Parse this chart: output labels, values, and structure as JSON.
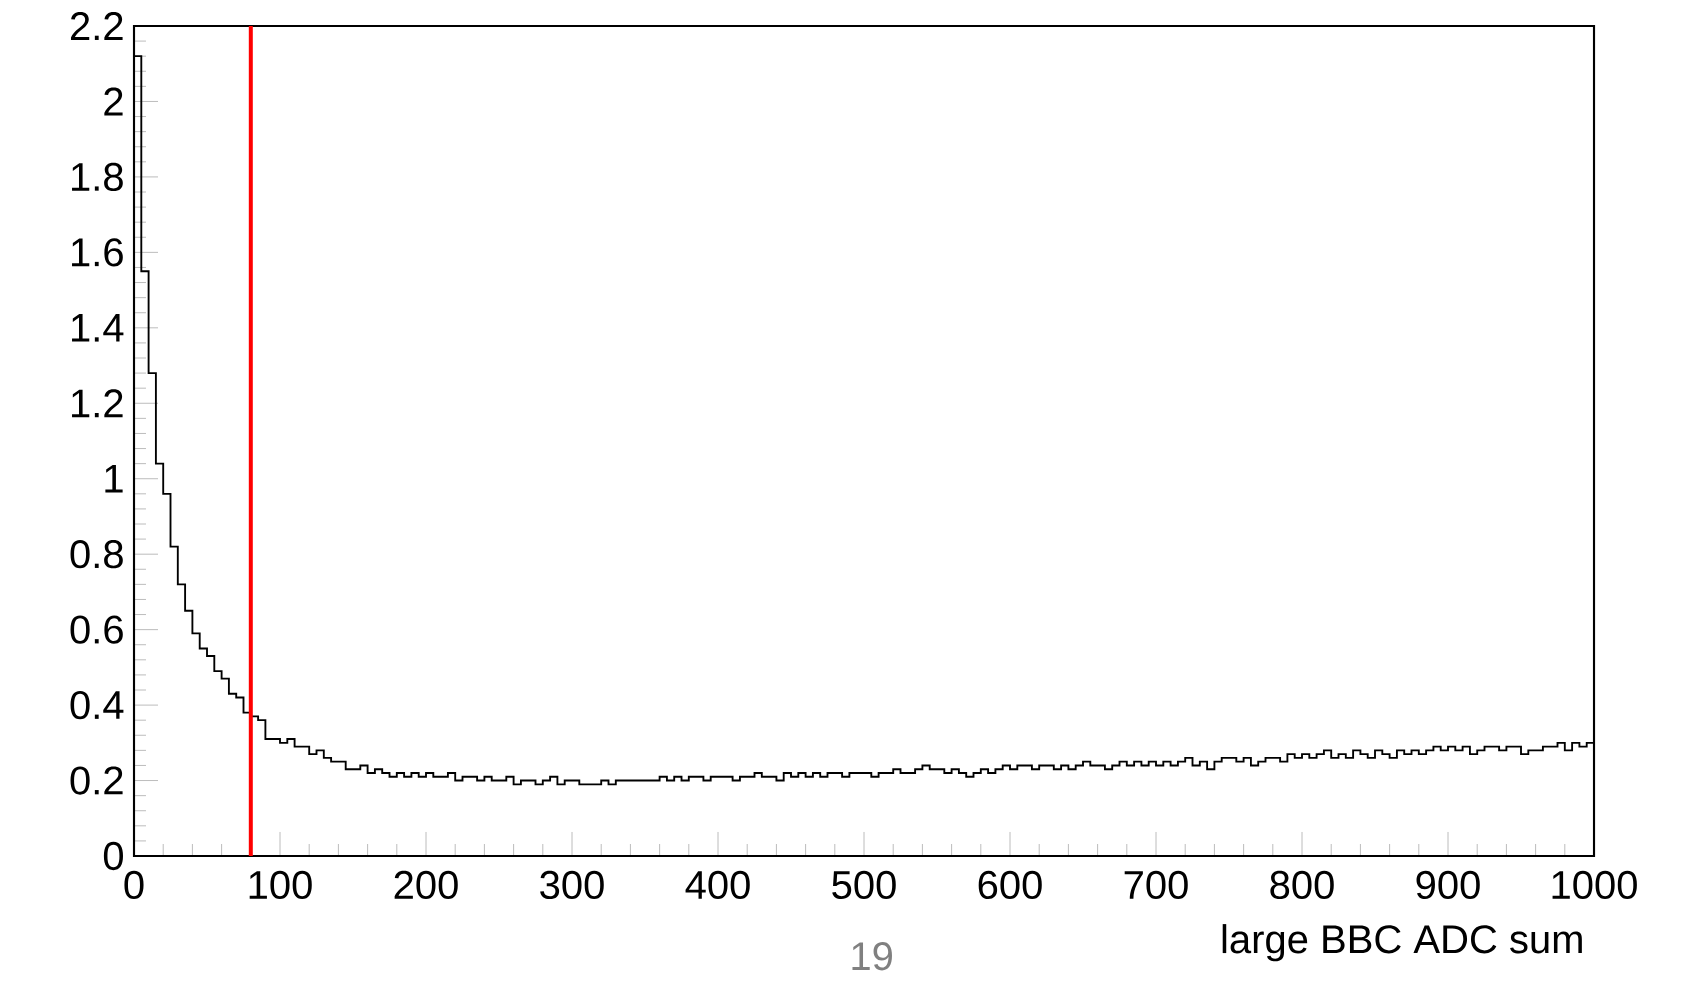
{
  "chart_data": {
    "type": "histogram",
    "xlabel": "large BBC ADC sum",
    "bins": [
      0,
      5,
      10,
      15,
      20,
      25,
      30,
      35,
      40,
      45,
      50,
      55,
      60,
      65,
      70,
      75,
      80,
      85,
      90,
      95,
      100,
      105,
      110,
      115,
      120,
      125,
      130,
      135,
      140,
      145,
      150,
      155,
      160,
      165,
      170,
      175,
      180,
      185,
      190,
      195,
      200,
      205,
      210,
      215,
      220,
      225,
      230,
      235,
      240,
      245,
      250,
      255,
      260,
      265,
      270,
      275,
      280,
      285,
      290,
      295,
      300,
      305,
      310,
      315,
      320,
      325,
      330,
      335,
      340,
      345,
      350,
      355,
      360,
      365,
      370,
      375,
      380,
      385,
      390,
      395,
      400,
      405,
      410,
      415,
      420,
      425,
      430,
      435,
      440,
      445,
      450,
      455,
      460,
      465,
      470,
      475,
      480,
      485,
      490,
      495,
      500,
      505,
      510,
      515,
      520,
      525,
      530,
      535,
      540,
      545,
      550,
      555,
      560,
      565,
      570,
      575,
      580,
      585,
      590,
      595,
      600,
      605,
      610,
      615,
      620,
      625,
      630,
      635,
      640,
      645,
      650,
      655,
      660,
      665,
      670,
      675,
      680,
      685,
      690,
      695,
      700,
      705,
      710,
      715,
      720,
      725,
      730,
      735,
      740,
      745,
      750,
      755,
      760,
      765,
      770,
      775,
      780,
      785,
      790,
      795,
      800,
      805,
      810,
      815,
      820,
      825,
      830,
      835,
      840,
      845,
      850,
      855,
      860,
      865,
      870,
      875,
      880,
      885,
      890,
      895,
      900,
      905,
      910,
      915,
      920,
      925,
      930,
      935,
      940,
      945,
      950,
      955,
      960,
      965,
      970,
      975,
      980,
      985,
      990,
      995,
      1000
    ],
    "values": [
      2.12,
      1.55,
      1.28,
      1.04,
      0.96,
      0.82,
      0.72,
      0.65,
      0.59,
      0.55,
      0.53,
      0.49,
      0.47,
      0.43,
      0.42,
      0.38,
      0.37,
      0.36,
      0.31,
      0.31,
      0.3,
      0.31,
      0.29,
      0.29,
      0.27,
      0.28,
      0.26,
      0.25,
      0.25,
      0.23,
      0.23,
      0.24,
      0.22,
      0.23,
      0.22,
      0.21,
      0.22,
      0.21,
      0.22,
      0.21,
      0.22,
      0.21,
      0.21,
      0.22,
      0.2,
      0.21,
      0.21,
      0.2,
      0.21,
      0.2,
      0.2,
      0.21,
      0.19,
      0.2,
      0.2,
      0.19,
      0.2,
      0.21,
      0.19,
      0.2,
      0.2,
      0.19,
      0.19,
      0.19,
      0.2,
      0.19,
      0.2,
      0.2,
      0.2,
      0.2,
      0.2,
      0.2,
      0.21,
      0.2,
      0.21,
      0.2,
      0.21,
      0.21,
      0.2,
      0.21,
      0.21,
      0.21,
      0.2,
      0.21,
      0.21,
      0.22,
      0.21,
      0.21,
      0.2,
      0.22,
      0.21,
      0.22,
      0.21,
      0.22,
      0.21,
      0.22,
      0.22,
      0.21,
      0.22,
      0.22,
      0.22,
      0.21,
      0.22,
      0.22,
      0.23,
      0.22,
      0.22,
      0.23,
      0.24,
      0.23,
      0.23,
      0.22,
      0.23,
      0.22,
      0.21,
      0.22,
      0.23,
      0.22,
      0.23,
      0.24,
      0.23,
      0.24,
      0.24,
      0.23,
      0.24,
      0.24,
      0.23,
      0.24,
      0.23,
      0.24,
      0.25,
      0.24,
      0.24,
      0.23,
      0.24,
      0.25,
      0.24,
      0.25,
      0.24,
      0.25,
      0.24,
      0.25,
      0.24,
      0.25,
      0.26,
      0.24,
      0.25,
      0.23,
      0.25,
      0.26,
      0.26,
      0.25,
      0.26,
      0.24,
      0.25,
      0.26,
      0.26,
      0.25,
      0.27,
      0.26,
      0.27,
      0.26,
      0.27,
      0.28,
      0.26,
      0.27,
      0.26,
      0.28,
      0.27,
      0.26,
      0.28,
      0.27,
      0.26,
      0.28,
      0.27,
      0.28,
      0.27,
      0.28,
      0.29,
      0.28,
      0.29,
      0.28,
      0.29,
      0.27,
      0.28,
      0.29,
      0.29,
      0.28,
      0.29,
      0.29,
      0.27,
      0.28,
      0.28,
      0.29,
      0.29,
      0.3,
      0.28,
      0.3,
      0.29,
      0.3
    ],
    "color": "#000000",
    "xlim": [
      0,
      1000
    ],
    "ylim": [
      0,
      2.2
    ],
    "xticks": [
      0,
      100,
      200,
      300,
      400,
      500,
      600,
      700,
      800,
      900,
      1000
    ],
    "yticks": [
      0,
      0.2,
      0.4,
      0.6,
      0.8,
      1,
      1.2,
      1.4,
      1.6,
      1.8,
      2,
      2.2
    ],
    "ref_lines": [
      {
        "axis": "x",
        "value": 80,
        "color": "#ff0000"
      }
    ],
    "annotations": [
      "19"
    ]
  }
}
